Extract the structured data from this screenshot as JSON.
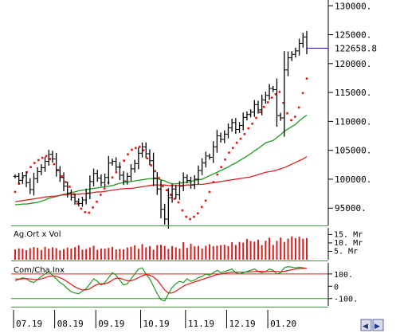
{
  "chart_data": [
    {
      "type": "candlestick",
      "panel": "price",
      "x_labels": [
        "07.19",
        "08.19",
        "09.19",
        "10.19",
        "11.19",
        "12.19",
        "01.20"
      ],
      "y_ticks": [
        "130000.",
        "125000.",
        "120000.",
        "115000.",
        "110000.",
        "105000.",
        "100000.",
        "95000."
      ],
      "ylim": [
        92000,
        131000
      ],
      "last_value_label": "122658.8",
      "close": [
        100500,
        99800,
        100600,
        99400,
        98200,
        100100,
        101300,
        102000,
        103100,
        104300,
        103500,
        101500,
        100300,
        98800,
        97600,
        96900,
        96200,
        95800,
        96400,
        97600,
        99600,
        101000,
        100200,
        99400,
        100300,
        102800,
        103100,
        102100,
        100700,
        99700,
        100500,
        101800,
        102700,
        104500,
        105600,
        104400,
        103200,
        100200,
        98300,
        94800,
        93100,
        96800,
        98300,
        97300,
        98800,
        100300,
        99800,
        99000,
        100000,
        101500,
        102800,
        104000,
        103800,
        105600,
        107500,
        106900,
        107800,
        108900,
        109800,
        108600,
        109300,
        110700,
        111200,
        111600,
        112900,
        112000,
        113700,
        114500,
        115700,
        115500,
        111000,
        110600,
        118900,
        121000,
        121600,
        122200,
        123500,
        124600,
        122659
      ],
      "series": [
        {
          "name": "",
          "style": "line",
          "color": "#1e9b1e",
          "values": [
            95600,
            95600,
            95700,
            95700,
            95800,
            95900,
            96000,
            96200,
            96400,
            96700,
            97000,
            97200,
            97400,
            97500,
            97700,
            97800,
            98000,
            98100,
            98200,
            98300,
            98400,
            98500,
            98600,
            98700,
            98800,
            98900,
            99100,
            99300,
            99500,
            99600,
            99700,
            99800,
            99900,
            100000,
            100100,
            100100,
            100100,
            99900,
            99700,
            99400,
            99200,
            99200,
            99300,
            99400,
            99500,
            99600,
            99800,
            100000,
            100300,
            100600,
            100900,
            101200,
            101500,
            101800,
            102100,
            102500,
            102800,
            103200,
            103600,
            104000,
            104400,
            104900,
            105300,
            105800,
            106300,
            106700,
            107200,
            107700,
            108300,
            108700,
            109100,
            109500,
            110100,
            110600,
            111100
          ]
        },
        {
          "name": "",
          "style": "line",
          "color": "#d92323",
          "values": [
            96100,
            96200,
            96300,
            96400,
            96500,
            96600,
            96700,
            96800,
            96900,
            97000,
            97100,
            97200,
            97300,
            97300,
            97400,
            97400,
            97400,
            97500,
            97500,
            97600,
            97700,
            97800,
            97800,
            97900,
            98000,
            98100,
            98200,
            98300,
            98400,
            98400,
            98500,
            98600,
            98700,
            98800,
            98900,
            99000,
            99000,
            99000,
            99000,
            98900,
            98900,
            98900,
            98900,
            98900,
            99000,
            99000,
            99100,
            99100,
            99200,
            99300,
            99400,
            99500,
            99600,
            99700,
            99800,
            99900,
            100000,
            100100,
            100200,
            100300,
            100400,
            100600,
            100800,
            101000,
            101200,
            101400,
            101600,
            101800,
            102000,
            102300,
            102600,
            102900,
            103200,
            103500,
            103900
          ]
        },
        {
          "name": "",
          "style": "dots",
          "color": "#e21818",
          "values": [
            97800,
            99200,
            100300,
            101200,
            102100,
            102800,
            103300,
            103700,
            104000,
            103500,
            102600,
            101600,
            100500,
            99500,
            98700,
            97400,
            95800,
            94900,
            94300,
            94200,
            95100,
            96100,
            97300,
            98400,
            99400,
            100300,
            101200,
            102100,
            103200,
            104300,
            105100,
            105400,
            105600,
            105000,
            103600,
            102400,
            101400,
            100200,
            98800,
            98100,
            97300,
            96600,
            96000,
            94600,
            93500,
            93100,
            93500,
            94100,
            95200,
            96300,
            97800,
            99500,
            100800,
            102100,
            103400,
            104600,
            105400,
            106300,
            107000,
            107800,
            108800,
            109600,
            110600,
            111600,
            112500,
            113300,
            114100,
            114700,
            115100,
            113200,
            111400,
            110200,
            110800,
            112400,
            114900,
            117400
          ]
        }
      ]
    },
    {
      "type": "bar",
      "panel": "volume",
      "title": "Ag.Ort x Vol",
      "y_ticks": [
        "15. Mr",
        "10. Mr",
        "5. Mr"
      ],
      "ylim": [
        0,
        19
      ],
      "values": [
        6.1,
        6.8,
        6.5,
        5.7,
        6.9,
        7.5,
        7.1,
        5.8,
        7.7,
        6.6,
        7.4,
        6.9,
        5.6,
        6.3,
        7.2,
        6.7,
        7.5,
        8.6,
        6.0,
        6.4,
        7.3,
        8.3,
        5.9,
        6.7,
        6.6,
        7.0,
        7.6,
        6.1,
        6.4,
        6.2,
        7.3,
        7.7,
        8.6,
        6.5,
        9.3,
        7.4,
        8.1,
        6.0,
        8.7,
        8.9,
        8.2,
        6.4,
        8.1,
        7.3,
        6.6,
        10.4,
        7.1,
        9.6,
        8.0,
        8.3,
        6.6,
        8.3,
        9.2,
        8.1,
        8.4,
        8.7,
        8.9,
        8.1,
        10.5,
        8.8,
        10.6,
        10.2,
        12.4,
        11.1,
        10.8,
        11.9,
        8.7,
        11.3,
        13.1,
        8.8,
        11.2,
        13.2,
        10.6,
        12.6,
        13.9,
        12.9,
        13.7,
        12.5,
        12.9
      ]
    },
    {
      "type": "line",
      "panel": "oscillator",
      "title": "Com/Cha.Inx",
      "y_ticks": [
        "100.",
        "0",
        "-100."
      ],
      "ylim": [
        -160,
        190
      ],
      "series": [
        {
          "name": "",
          "color": "#1e9b1e",
          "values": [
            45,
            55,
            70,
            60,
            40,
            30,
            55,
            80,
            100,
            120,
            90,
            60,
            30,
            10,
            -20,
            -45,
            -55,
            -60,
            -40,
            -20,
            20,
            60,
            40,
            10,
            30,
            70,
            110,
            90,
            50,
            10,
            20,
            60,
            100,
            140,
            150,
            100,
            60,
            0,
            -60,
            -110,
            -120,
            -60,
            -10,
            20,
            40,
            30,
            60,
            40,
            50,
            70,
            80,
            100,
            90,
            110,
            130,
            110,
            120,
            130,
            140,
            110,
            100,
            110,
            120,
            130,
            140,
            120,
            110,
            120,
            140,
            130,
            100,
            110,
            150,
            160,
            155,
            150,
            155,
            150,
            145
          ]
        },
        {
          "name": "",
          "color": "#e21818",
          "values": [
            60,
            58,
            60,
            62,
            60,
            55,
            55,
            60,
            70,
            80,
            85,
            80,
            70,
            55,
            35,
            15,
            -5,
            -20,
            -30,
            -30,
            -20,
            0,
            15,
            20,
            20,
            30,
            50,
            65,
            65,
            55,
            45,
            45,
            55,
            70,
            85,
            95,
            90,
            75,
            50,
            10,
            -30,
            -55,
            -55,
            -40,
            -20,
            0,
            15,
            25,
            35,
            45,
            55,
            65,
            75,
            85,
            95,
            100,
            105,
            110,
            115,
            115,
            115,
            115,
            115,
            117,
            120,
            122,
            120,
            118,
            120,
            122,
            120,
            118,
            122,
            128,
            135,
            140,
            143,
            145,
            146
          ]
        }
      ]
    }
  ],
  "ui": {
    "scroll_buttons": [
      "◀",
      "▶"
    ]
  }
}
